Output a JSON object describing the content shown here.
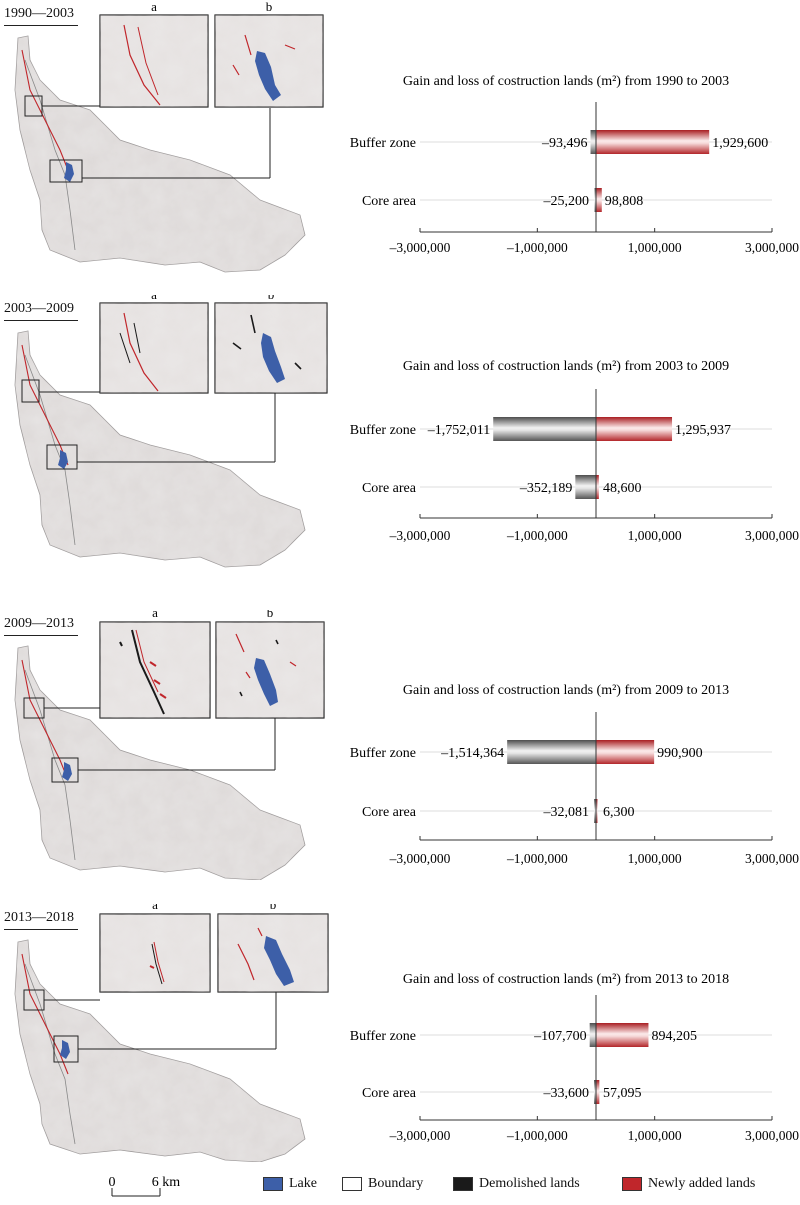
{
  "panels": [
    {
      "period": "1990—2003",
      "inset_a": "a",
      "inset_b": "b",
      "chart": {
        "title": "Gain and loss of costruction lands (m²) from 1990 to 2003",
        "categories": [
          "Buffer zone",
          "Core area"
        ],
        "loss": [
          -93496,
          -25200
        ],
        "gain": [
          1929600,
          98808
        ],
        "loss_labels": [
          "–93,496",
          "–25,200"
        ],
        "gain_labels": [
          "1,929,600",
          "98,808"
        ]
      }
    },
    {
      "period": "2003—2009",
      "inset_a": "a",
      "inset_b": "b",
      "chart": {
        "title": "Gain and loss of costruction lands (m²) from 2003 to 2009",
        "categories": [
          "Buffer zone",
          "Core area"
        ],
        "loss": [
          -1752011,
          -352189
        ],
        "gain": [
          1295937,
          48600
        ],
        "loss_labels": [
          "–1,752,011",
          "–352,189"
        ],
        "gain_labels": [
          "1,295,937",
          "48,600"
        ]
      }
    },
    {
      "period": "2009—2013",
      "inset_a": "a",
      "inset_b": "b",
      "chart": {
        "title": "Gain and loss of costruction lands (m²) from 2009 to 2013",
        "categories": [
          "Buffer zone",
          "Core area"
        ],
        "loss": [
          -1514364,
          -32081
        ],
        "gain": [
          990900,
          6300
        ],
        "loss_labels": [
          "–1,514,364",
          "–32,081"
        ],
        "gain_labels": [
          "990,900",
          "6,300"
        ]
      }
    },
    {
      "period": "2013—2018",
      "inset_a": "a",
      "inset_b": "b",
      "chart": {
        "title": "Gain and loss of costruction lands (m²) from 2013 to 2018",
        "categories": [
          "Buffer zone",
          "Core area"
        ],
        "loss": [
          -107700,
          -33600
        ],
        "gain": [
          894205,
          57095
        ],
        "loss_labels": [
          "–107,700",
          "–33,600"
        ],
        "gain_labels": [
          "894,205",
          "57,095"
        ]
      }
    }
  ],
  "axis": {
    "ticks": [
      -3000000,
      -1000000,
      1000000,
      3000000
    ],
    "tick_labels": [
      "–3,000,000",
      "–1,000,000",
      "1,000,000",
      "3,000,000"
    ],
    "xlim": [
      -3000000,
      3000000
    ]
  },
  "scale": {
    "zero": "0",
    "distance": "6 km"
  },
  "legend": [
    {
      "label": "Lake",
      "color": "#3d5fa8"
    },
    {
      "label": "Boundary",
      "color": "#ffffff"
    },
    {
      "label": "Demolished lands",
      "color": "#1a1a1a"
    },
    {
      "label": "Newly added lands",
      "color": "#c0262b"
    }
  ],
  "colors": {
    "gain": "#c0262b",
    "loss": "#4a4a4a",
    "lake": "#3d5fa8",
    "terrain": "#dcd8d7"
  },
  "chart_data": [
    {
      "type": "bar",
      "title": "Gain and loss of costruction lands (m²) from 1990 to 2003",
      "categories": [
        "Buffer zone",
        "Core area"
      ],
      "series": [
        {
          "name": "Demolished lands",
          "values": [
            -93496,
            -25200
          ]
        },
        {
          "name": "Newly added lands",
          "values": [
            1929600,
            98808
          ]
        }
      ],
      "xlim": [
        -3000000,
        3000000
      ]
    },
    {
      "type": "bar",
      "title": "Gain and loss of costruction lands (m²) from 2003 to 2009",
      "categories": [
        "Buffer zone",
        "Core area"
      ],
      "series": [
        {
          "name": "Demolished lands",
          "values": [
            -1752011,
            -352189
          ]
        },
        {
          "name": "Newly added lands",
          "values": [
            1295937,
            48600
          ]
        }
      ],
      "xlim": [
        -3000000,
        3000000
      ]
    },
    {
      "type": "bar",
      "title": "Gain and loss of costruction lands (m²) from 2009 to 2013",
      "categories": [
        "Buffer zone",
        "Core area"
      ],
      "series": [
        {
          "name": "Demolished lands",
          "values": [
            -1514364,
            -32081
          ]
        },
        {
          "name": "Newly added lands",
          "values": [
            990900,
            6300
          ]
        }
      ],
      "xlim": [
        -3000000,
        3000000
      ]
    },
    {
      "type": "bar",
      "title": "Gain and loss of costruction lands (m²) from 2013 to 2018",
      "categories": [
        "Buffer zone",
        "Core area"
      ],
      "series": [
        {
          "name": "Demolished lands",
          "values": [
            -107700,
            -33600
          ]
        },
        {
          "name": "Newly added lands",
          "values": [
            894205,
            57095
          ]
        }
      ],
      "xlim": [
        -3000000,
        3000000
      ]
    }
  ]
}
